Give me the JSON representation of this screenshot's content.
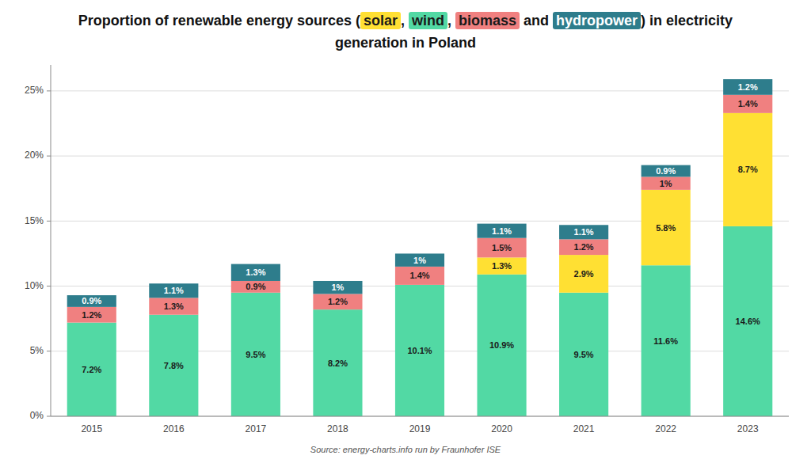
{
  "chart_data": {
    "type": "bar",
    "stacked": true,
    "data_labels": true,
    "grid": true,
    "title": "Proportion of renewable energy sources (solar, wind, biomass and hydropower) in electricity generation in Poland",
    "annotations": [
      "Source: energy-charts.info run by Fraunhofer ISE"
    ],
    "categories": [
      "2015",
      "2016",
      "2017",
      "2018",
      "2019",
      "2020",
      "2021",
      "2022",
      "2023"
    ],
    "series": [
      {
        "name": "wind",
        "color": "#52d9a4",
        "values": [
          7.2,
          7.8,
          9.5,
          8.2,
          10.1,
          10.9,
          9.5,
          11.6,
          14.6
        ],
        "value_labels": [
          "7.2%",
          "7.8%",
          "9.5%",
          "8.2%",
          "10.1%",
          "10.9%",
          "9.5%",
          "11.6%",
          "14.6%"
        ]
      },
      {
        "name": "solar",
        "color": "#ffe033",
        "values": [
          0.0,
          0.0,
          0.0,
          0.0,
          0.0,
          1.3,
          2.9,
          5.8,
          8.7
        ],
        "value_labels": [
          null,
          null,
          null,
          null,
          null,
          "1.3%",
          "2.9%",
          "5.8%",
          "8.7%"
        ]
      },
      {
        "name": "biomass",
        "color": "#f08080",
        "values": [
          1.2,
          1.3,
          0.9,
          1.2,
          1.4,
          1.5,
          1.2,
          1.0,
          1.4
        ],
        "value_labels": [
          "1.2%",
          "1.3%",
          "0.9%",
          "1.2%",
          "1.4%",
          "1.5%",
          "1.2%",
          "1%",
          "1.4%"
        ]
      },
      {
        "name": "hydropower",
        "color": "#2e7d8c",
        "values": [
          0.9,
          1.1,
          1.3,
          1.0,
          1.0,
          1.1,
          1.1,
          0.9,
          1.2
        ],
        "value_labels": [
          "0.9%",
          "1.1%",
          "1.3%",
          "1%",
          "1%",
          "1.1%",
          "1.1%",
          "0.9%",
          "1.2%"
        ]
      }
    ],
    "ylim": [
      0,
      27
    ],
    "yticks": [
      {
        "value": 0,
        "label": "0%"
      },
      {
        "value": 5,
        "label": "5%"
      },
      {
        "value": 10,
        "label": "10%"
      },
      {
        "value": 15,
        "label": "15%"
      },
      {
        "value": 20,
        "label": "20%"
      },
      {
        "value": 25,
        "label": "25%"
      }
    ]
  }
}
